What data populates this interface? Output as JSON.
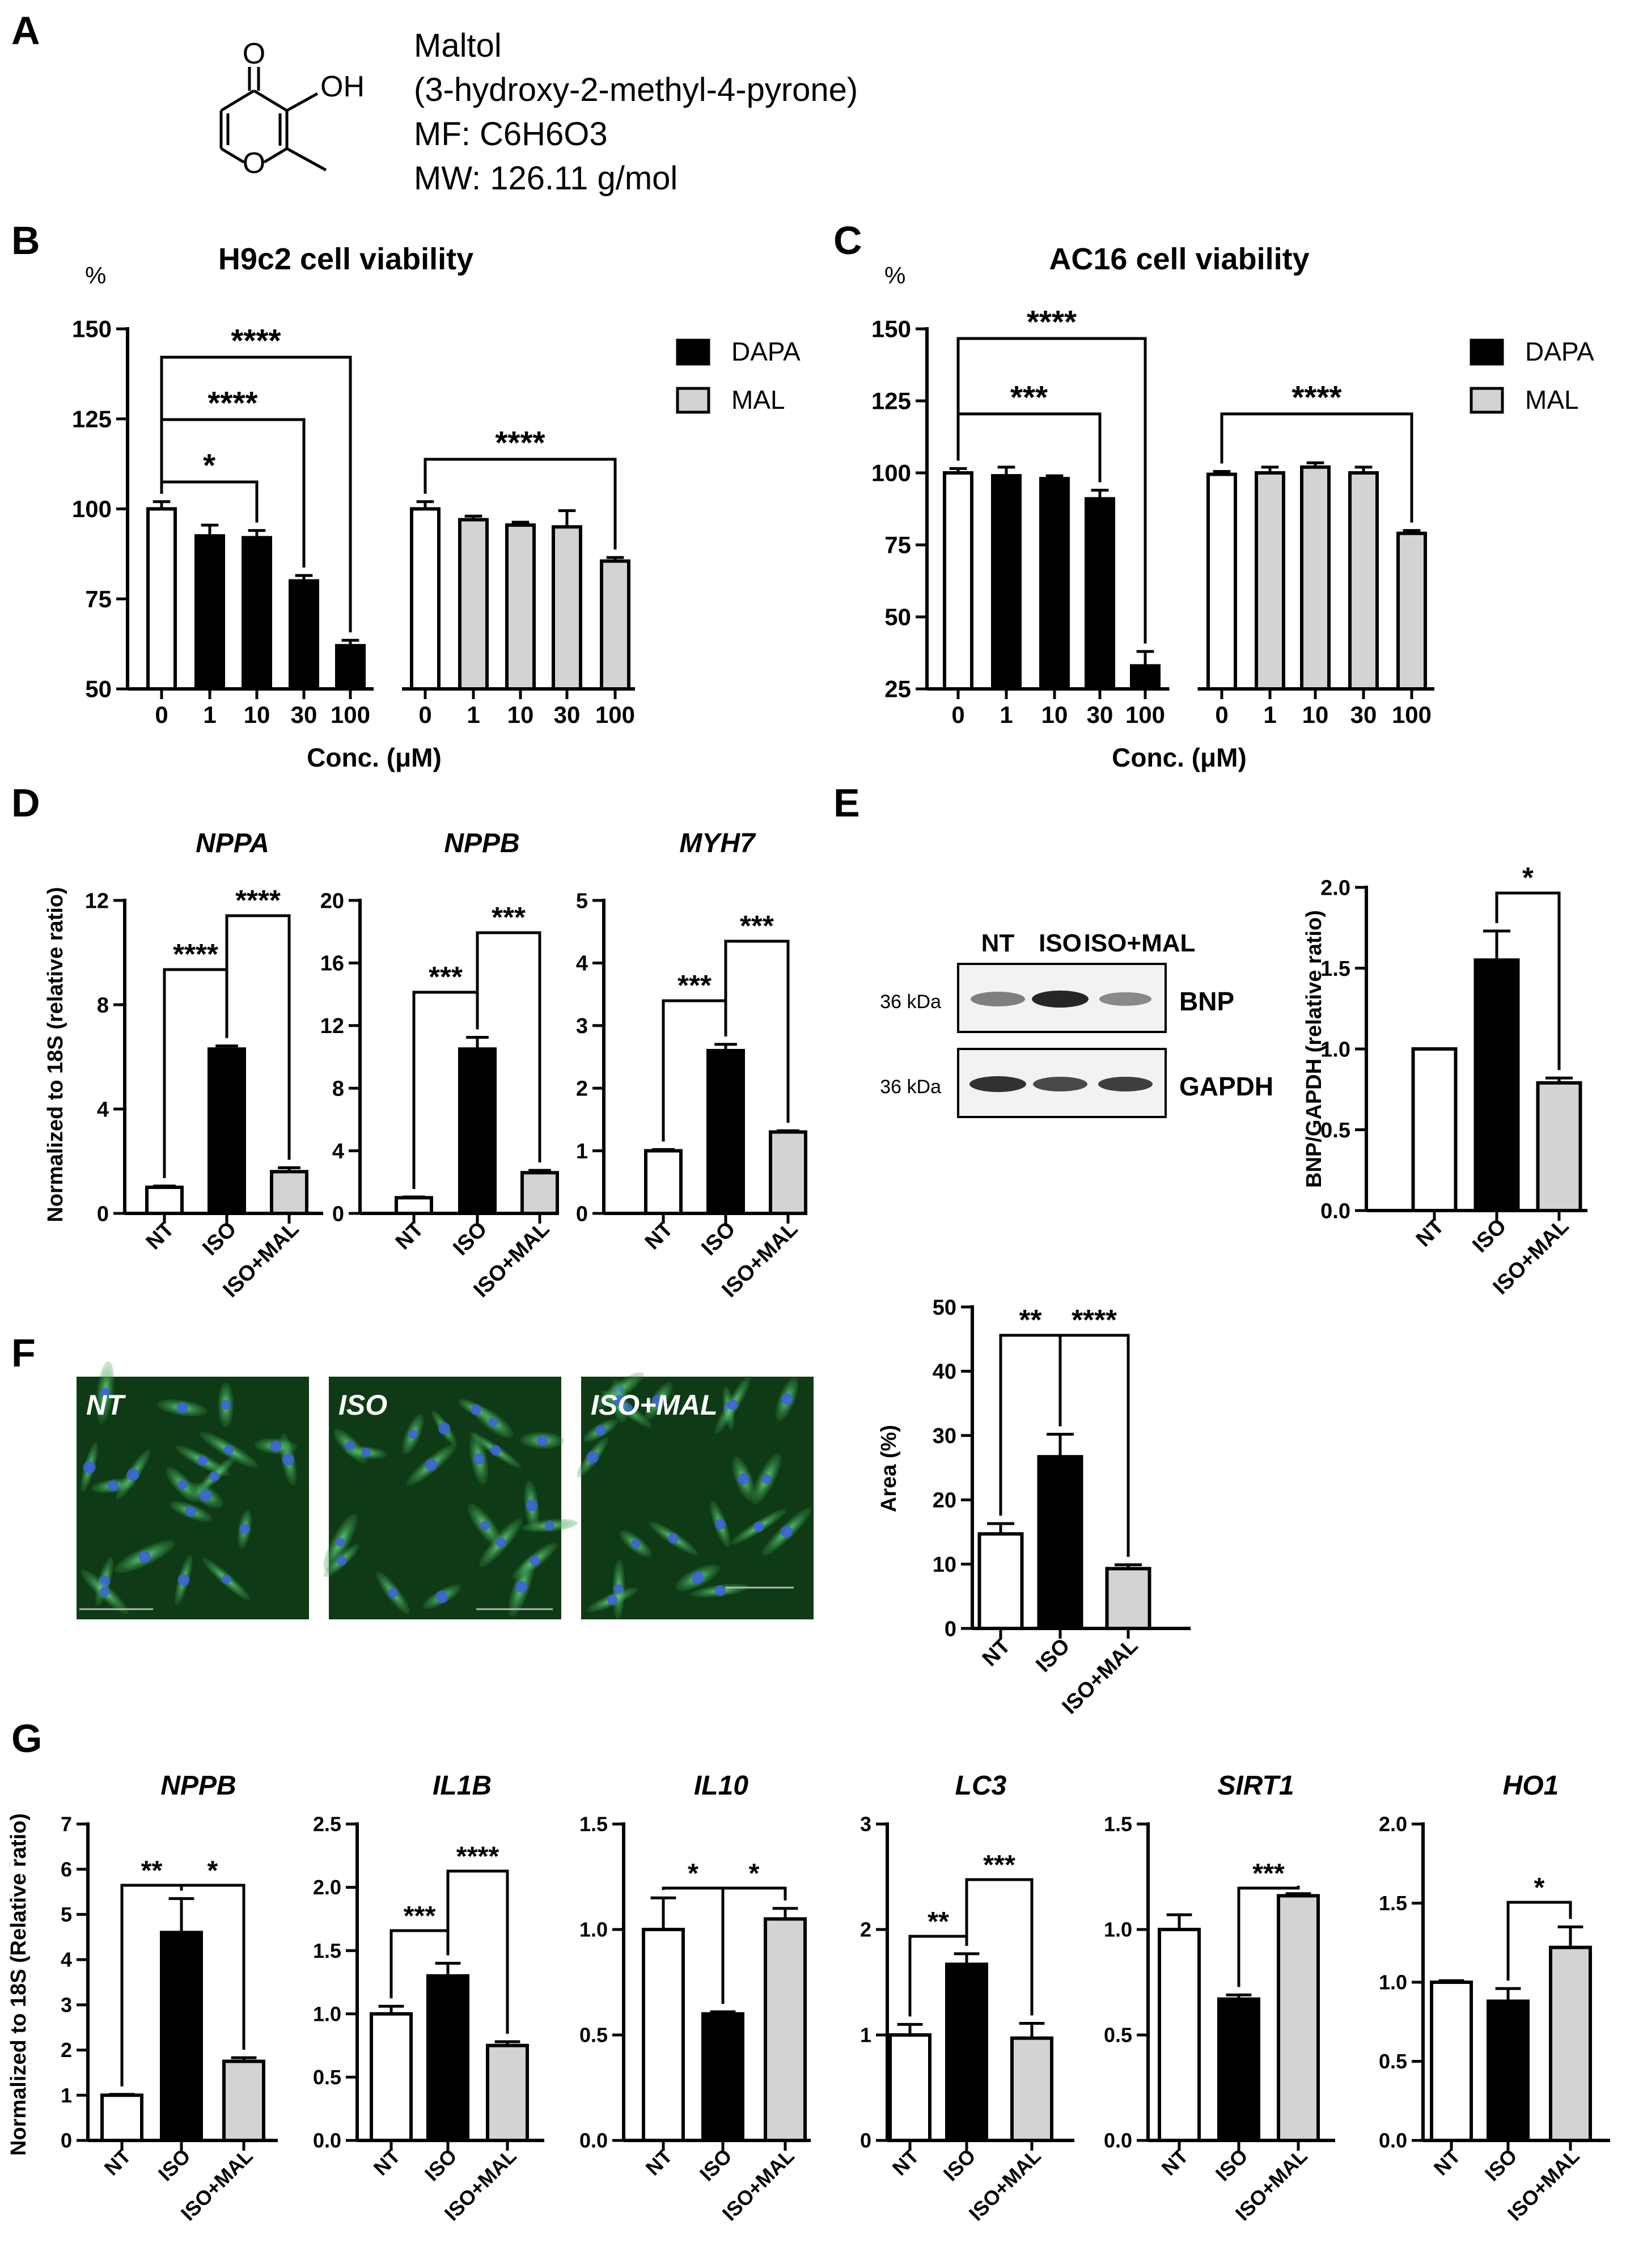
{
  "panels": {
    "A": "A",
    "B": "B",
    "C": "C",
    "D": "D",
    "E": "E",
    "F": "F",
    "G": "G"
  },
  "compound": {
    "name": "Maltol",
    "iupac": "(3-hydroxy-2-methyl-4-pyrone)",
    "mf": "MF:  C6H6O3",
    "mw": "MW: 126.11 g/mol",
    "atom_o_carbonyl": "O",
    "atom_oh": "OH",
    "atom_o_ring": "O"
  },
  "colors": {
    "DAPA": "#000000",
    "MAL": "#d3d3d3",
    "NT": "#ffffff",
    "ISO": "#000000",
    "ISO+MAL": "#d3d3d3"
  },
  "western_blot": {
    "lanes": [
      "NT",
      "ISO",
      "ISO+MAL"
    ],
    "rows": [
      {
        "marker": "36 kDa",
        "protein": "BNP",
        "intensity": [
          0.55,
          0.9,
          0.5
        ]
      },
      {
        "marker": "36 kDa",
        "protein": "GAPDH",
        "intensity": [
          0.85,
          0.75,
          0.8
        ]
      }
    ]
  },
  "micrographs": [
    {
      "label": "NT"
    },
    {
      "label": "ISO"
    },
    {
      "label": "ISO+MAL"
    }
  ],
  "chart_data": [
    {
      "id": "B",
      "type": "bar",
      "title": "H9c2 cell viability",
      "unit": "%",
      "xlabel": "Conc. (μM)",
      "ylim": [
        50,
        150
      ],
      "yticks": [
        "50",
        "75",
        "100",
        "125",
        "150"
      ],
      "categories": [
        "0",
        "1",
        "10",
        "30",
        "100",
        "0",
        "1",
        "10",
        "30",
        "100"
      ],
      "values": [
        100,
        92.5,
        92,
        80,
        62,
        100,
        97,
        95.5,
        95,
        85.5
      ],
      "errors": [
        2,
        3,
        2,
        1.5,
        1.5,
        2,
        1,
        0.8,
        4.5,
        1
      ],
      "fill": [
        "white",
        "DAPA",
        "DAPA",
        "DAPA",
        "DAPA",
        "white",
        "MAL",
        "MAL",
        "MAL",
        "MAL"
      ],
      "legend": [
        {
          "name": "DAPA",
          "color": "#000000"
        },
        {
          "name": "MAL",
          "color": "#d3d3d3"
        }
      ],
      "legend_position": "top-right",
      "significance": [
        {
          "from": 0,
          "to": 2,
          "label": "*"
        },
        {
          "from": 0,
          "to": 3,
          "label": "****"
        },
        {
          "from": 0,
          "to": 4,
          "label": "****"
        },
        {
          "from": 5,
          "to": 9,
          "label": "****"
        }
      ]
    },
    {
      "id": "C",
      "type": "bar",
      "title": "AC16 cell viability",
      "unit": "%",
      "xlabel": "Conc. (μM)",
      "ylim": [
        25,
        150
      ],
      "yticks": [
        "25",
        "50",
        "75",
        "100",
        "125",
        "150"
      ],
      "categories": [
        "0",
        "1",
        "10",
        "30",
        "100",
        "0",
        "1",
        "10",
        "30",
        "100"
      ],
      "values": [
        100,
        99,
        98,
        91,
        33,
        99.5,
        100,
        102,
        100,
        79
      ],
      "errors": [
        1.5,
        3,
        1,
        3,
        5,
        1,
        2,
        1.5,
        2,
        1
      ],
      "fill": [
        "white",
        "DAPA",
        "DAPA",
        "DAPA",
        "DAPA",
        "white",
        "MAL",
        "MAL",
        "MAL",
        "MAL"
      ],
      "legend": [
        {
          "name": "DAPA",
          "color": "#000000"
        },
        {
          "name": "MAL",
          "color": "#d3d3d3"
        }
      ],
      "legend_position": "top-right",
      "significance": [
        {
          "from": 0,
          "to": 3,
          "label": "***"
        },
        {
          "from": 0,
          "to": 4,
          "label": "****"
        },
        {
          "from": 5,
          "to": 9,
          "label": "****"
        }
      ]
    },
    {
      "id": "D1",
      "type": "bar",
      "title": "NPPA",
      "ylabel": "Normalized to 18S (relative ratio)",
      "ylim": [
        0,
        12
      ],
      "yticks": [
        "0",
        "4",
        "8",
        "12"
      ],
      "categories": [
        "NT",
        "ISO",
        "ISO+MAL"
      ],
      "values": [
        1.0,
        6.3,
        1.6
      ],
      "errors": [
        0.05,
        0.12,
        0.15
      ],
      "significance": [
        {
          "from": 0,
          "to": 1,
          "label": "****"
        },
        {
          "from": 1,
          "to": 2,
          "label": "****"
        }
      ]
    },
    {
      "id": "D2",
      "type": "bar",
      "title": "NPPB",
      "ylim": [
        0,
        20
      ],
      "yticks": [
        "0",
        "4",
        "8",
        "12",
        "16",
        "20"
      ],
      "categories": [
        "NT",
        "ISO",
        "ISO+MAL"
      ],
      "values": [
        1.0,
        10.5,
        2.6
      ],
      "errors": [
        0.05,
        0.75,
        0.15
      ],
      "significance": [
        {
          "from": 0,
          "to": 1,
          "label": "***"
        },
        {
          "from": 1,
          "to": 2,
          "label": "***"
        }
      ]
    },
    {
      "id": "D3",
      "type": "bar",
      "title": "MYH7",
      "ylim": [
        0,
        5
      ],
      "yticks": [
        "0",
        "1",
        "2",
        "3",
        "4",
        "5"
      ],
      "categories": [
        "NT",
        "ISO",
        "ISO+MAL"
      ],
      "values": [
        1.0,
        2.6,
        1.3
      ],
      "errors": [
        0.02,
        0.1,
        0.02
      ],
      "significance": [
        {
          "from": 0,
          "to": 1,
          "label": "***"
        },
        {
          "from": 1,
          "to": 2,
          "label": "***"
        }
      ]
    },
    {
      "id": "E",
      "type": "bar",
      "ylabel": "BNP/GAPDH (relative ratio)",
      "ylim": [
        0,
        2.0
      ],
      "yticks": [
        "0.0",
        "0.5",
        "1.0",
        "1.5",
        "2.0"
      ],
      "categories": [
        "NT",
        "ISO",
        "ISO+MAL"
      ],
      "values": [
        1.0,
        1.55,
        0.79
      ],
      "errors": [
        0,
        0.18,
        0.03
      ],
      "significance": [
        {
          "from": 1,
          "to": 2,
          "label": "*"
        }
      ]
    },
    {
      "id": "F",
      "type": "bar",
      "ylabel": "Area (%)",
      "ylim": [
        0,
        50
      ],
      "yticks": [
        "0",
        "10",
        "20",
        "30",
        "40",
        "50"
      ],
      "categories": [
        "NT",
        "ISO",
        "ISO+MAL"
      ],
      "values": [
        14.7,
        26.7,
        9.3
      ],
      "errors": [
        1.6,
        3.5,
        0.6
      ],
      "significance": [
        {
          "from": 0,
          "to": 1,
          "label": "**"
        },
        {
          "from": 1,
          "to": 2,
          "label": "****"
        }
      ]
    },
    {
      "id": "G1",
      "type": "bar",
      "title": "NPPB",
      "ylabel": "Normalized to 18S (Relative ratio)",
      "ylim": [
        0,
        7
      ],
      "yticks": [
        "0",
        "1",
        "2",
        "3",
        "4",
        "5",
        "6",
        "7"
      ],
      "categories": [
        "NT",
        "ISO",
        "ISO+MAL"
      ],
      "values": [
        1.0,
        4.6,
        1.75
      ],
      "errors": [
        0.02,
        0.75,
        0.08
      ],
      "significance": [
        {
          "from": 0,
          "to": 1,
          "label": "**"
        },
        {
          "from": 1,
          "to": 2,
          "label": "*"
        }
      ]
    },
    {
      "id": "G2",
      "type": "bar",
      "title": "IL1B",
      "ylim": [
        0,
        2.5
      ],
      "yticks": [
        "0.0",
        "0.5",
        "1.0",
        "1.5",
        "2.0",
        "2.5"
      ],
      "categories": [
        "NT",
        "ISO",
        "ISO+MAL"
      ],
      "values": [
        1.0,
        1.3,
        0.75
      ],
      "errors": [
        0.06,
        0.1,
        0.03
      ],
      "significance": [
        {
          "from": 0,
          "to": 1,
          "label": "***"
        },
        {
          "from": 1,
          "to": 2,
          "label": "****"
        }
      ]
    },
    {
      "id": "G3",
      "type": "bar",
      "title": "IL10",
      "ylim": [
        0,
        1.5
      ],
      "yticks": [
        "0.0",
        "0.5",
        "1.0",
        "1.5"
      ],
      "categories": [
        "NT",
        "ISO",
        "ISO+MAL"
      ],
      "values": [
        1.0,
        0.6,
        1.05
      ],
      "errors": [
        0.15,
        0.01,
        0.05
      ],
      "significance": [
        {
          "from": 0,
          "to": 1,
          "label": "*"
        },
        {
          "from": 1,
          "to": 2,
          "label": "*"
        }
      ]
    },
    {
      "id": "G4",
      "type": "bar",
      "title": "LC3",
      "ylim": [
        0,
        3
      ],
      "yticks": [
        "0",
        "1",
        "2",
        "3"
      ],
      "categories": [
        "NT",
        "ISO",
        "ISO+MAL"
      ],
      "values": [
        1.0,
        1.67,
        0.97
      ],
      "errors": [
        0.1,
        0.1,
        0.14
      ],
      "significance": [
        {
          "from": 0,
          "to": 1,
          "label": "**"
        },
        {
          "from": 1,
          "to": 2,
          "label": "***"
        }
      ]
    },
    {
      "id": "G5",
      "type": "bar",
      "title": "SIRT1",
      "ylim": [
        0,
        1.5
      ],
      "yticks": [
        "0.0",
        "0.5",
        "1.0",
        "1.5"
      ],
      "categories": [
        "NT",
        "ISO",
        "ISO+MAL"
      ],
      "values": [
        1.0,
        0.67,
        1.16
      ],
      "errors": [
        0.07,
        0.02,
        0.01
      ],
      "significance": [
        {
          "from": 1,
          "to": 2,
          "label": "***"
        }
      ]
    },
    {
      "id": "G6",
      "type": "bar",
      "title": "HO1",
      "ylim": [
        0,
        2.0
      ],
      "yticks": [
        "0.0",
        "0.5",
        "1.0",
        "1.5",
        "2.0"
      ],
      "categories": [
        "NT",
        "ISO",
        "ISO+MAL"
      ],
      "values": [
        1.0,
        0.88,
        1.22
      ],
      "errors": [
        0.01,
        0.08,
        0.13
      ],
      "significance": [
        {
          "from": 1,
          "to": 2,
          "label": "*"
        }
      ]
    }
  ]
}
